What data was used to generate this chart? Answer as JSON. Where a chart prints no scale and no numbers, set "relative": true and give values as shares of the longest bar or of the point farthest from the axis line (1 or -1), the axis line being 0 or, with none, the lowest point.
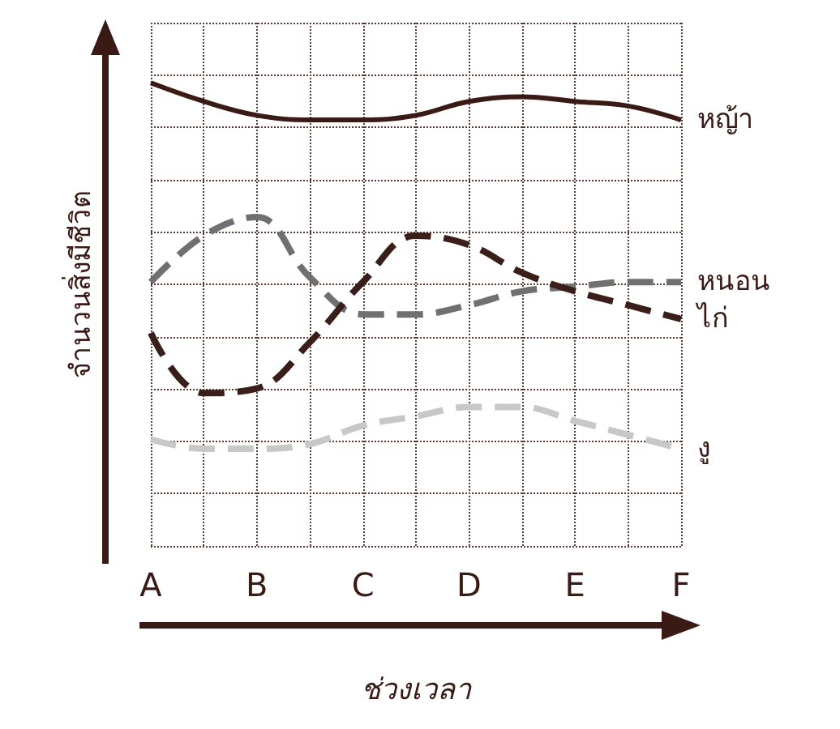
{
  "chart_data": {
    "type": "line",
    "relative": true,
    "xlabel": "ช่วงเวลา",
    "ylabel": "จำนวนสิ่งมีชีวิต",
    "categories": [
      "A",
      null,
      "B",
      null,
      "C",
      null,
      "D",
      null,
      "E",
      null,
      "F"
    ],
    "grid": true,
    "legend": false,
    "marker": "none",
    "series": [
      {
        "name": "หญ้า",
        "color": "#3a1a14",
        "line_style": "solid",
        "values": [
          1,
          0.96,
          0.93,
          0.92,
          0.92,
          0.93,
          0.96,
          0.97,
          0.96,
          0.95,
          0.92
        ]
      },
      {
        "name": "หนอน",
        "color": "#707070",
        "line_style": "dashed",
        "values": [
          0.57,
          0.67,
          0.71,
          0.58,
          0.5,
          0.5,
          0.52,
          0.55,
          0.56,
          0.57,
          0.57
        ]
      },
      {
        "name": "ไก่",
        "color": "#3a1e1a",
        "line_style": "dashed",
        "values": [
          0.46,
          0.33,
          0.34,
          0.44,
          0.57,
          0.67,
          0.65,
          0.59,
          0.55,
          0.52,
          0.49
        ]
      },
      {
        "name": "งู",
        "color": "#c8c8c8",
        "line_style": "dashed",
        "values": [
          0.23,
          0.21,
          0.21,
          0.22,
          0.26,
          0.28,
          0.3,
          0.3,
          0.27,
          0.24,
          0.21
        ]
      }
    ]
  }
}
